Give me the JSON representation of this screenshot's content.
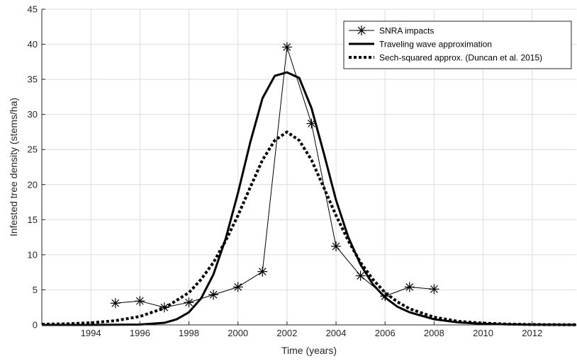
{
  "chart_data": {
    "type": "line",
    "title": "",
    "xlabel": "Time (years)",
    "ylabel": "Infested tree density (stems/ha)",
    "xlim": [
      1992,
      2013.8
    ],
    "ylim": [
      0,
      45
    ],
    "xticks": [
      1994,
      1996,
      1998,
      2000,
      2002,
      2004,
      2006,
      2008,
      2010,
      2012
    ],
    "yticks": [
      0,
      5,
      10,
      15,
      20,
      25,
      30,
      35,
      40,
      45
    ],
    "grid": true,
    "legend_position": "top-right",
    "series": [
      {
        "name": "SNRA impacts",
        "style": "line-with-asterisk-markers",
        "x": [
          1995,
          1996,
          1997,
          1998,
          1999,
          2000,
          2001,
          2002,
          2003,
          2004,
          2005,
          2006,
          2007,
          2008
        ],
        "y": [
          3.1,
          3.4,
          2.5,
          3.2,
          4.3,
          5.4,
          7.6,
          39.6,
          28.7,
          11.2,
          7.0,
          4.1,
          5.4,
          5.1
        ]
      },
      {
        "name": "Traveling wave approximation",
        "style": "solid",
        "x": [
          1992,
          1994,
          1996,
          1997,
          1997.5,
          1998,
          1998.5,
          1999,
          1999.5,
          2000,
          2000.5,
          2001,
          2001.5,
          2002,
          2002.5,
          2003,
          2003.5,
          2004,
          2004.5,
          2005,
          2005.5,
          2006,
          2006.5,
          2007,
          2008,
          2009,
          2010,
          2011,
          2012,
          2013.8
        ],
        "y": [
          0.0,
          0.0,
          0.05,
          0.3,
          0.8,
          1.8,
          3.8,
          7.2,
          12.3,
          18.8,
          26.0,
          32.3,
          35.5,
          36.0,
          35.2,
          30.9,
          24.5,
          17.8,
          12.5,
          8.6,
          5.8,
          3.9,
          2.6,
          1.8,
          0.8,
          0.35,
          0.15,
          0.07,
          0.03,
          0.0
        ]
      },
      {
        "name": "Sech-squared approx. (Duncan et al. 2015)",
        "style": "dotted",
        "x": [
          1992,
          1993,
          1994,
          1995,
          1996,
          1997,
          1998,
          1998.5,
          1999,
          1999.5,
          2000,
          2000.5,
          2001,
          2001.5,
          2002,
          2002.5,
          2003,
          2003.5,
          2004,
          2004.5,
          2005,
          2005.5,
          2006,
          2006.5,
          2007,
          2008,
          2009,
          2010,
          2011,
          2012,
          2013.8
        ],
        "y": [
          0.1,
          0.15,
          0.3,
          0.6,
          1.2,
          2.4,
          4.6,
          6.5,
          8.9,
          12.0,
          15.6,
          19.6,
          23.5,
          26.3,
          27.5,
          26.3,
          23.5,
          19.6,
          15.6,
          12.0,
          8.9,
          6.5,
          4.6,
          3.3,
          2.3,
          1.1,
          0.5,
          0.25,
          0.12,
          0.05,
          0.02
        ]
      }
    ]
  }
}
